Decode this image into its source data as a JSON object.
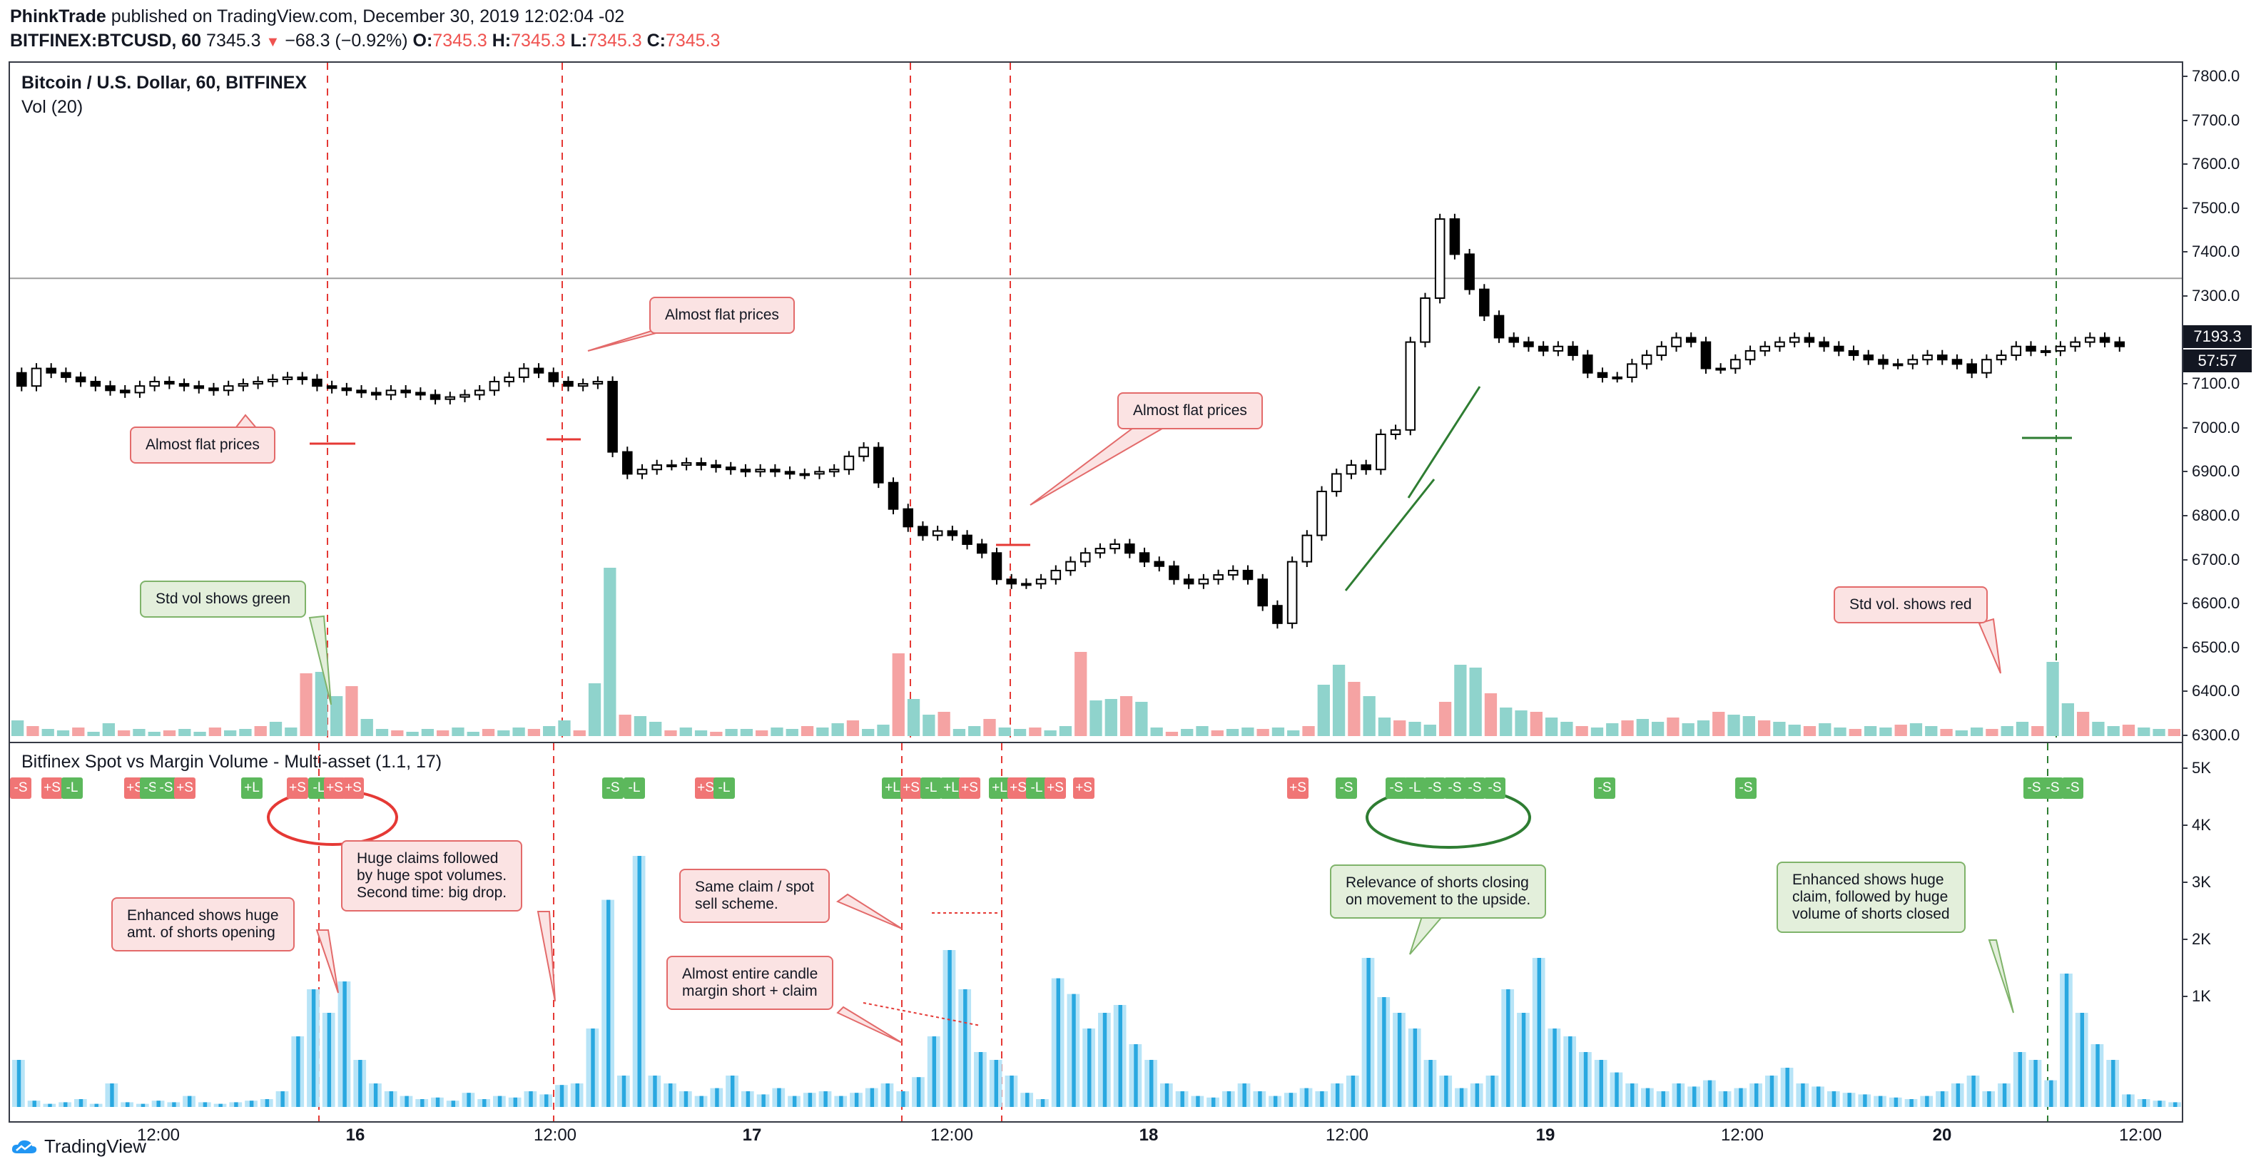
{
  "header": {
    "author": "PhinkTrade",
    "published_text": "published on TradingView.com, December 30, 2019 12:02:04 -02",
    "symbol": "BITFINEX:BTCUSD, 60",
    "last_price": "7345.3",
    "change": "−68.3 (−0.92%)",
    "o_label": "O:",
    "o_value": "7345.3",
    "h_label": "H:",
    "h_value": "7345.3",
    "l_label": "L:",
    "l_value": "7345.3",
    "c_label": "C:",
    "c_value": "7345.3"
  },
  "main_pane": {
    "title": "Bitcoin / U.S. Dollar, 60, BITFINEX",
    "vol_label": "Vol (20)",
    "price_badge": "7193.3",
    "countdown_badge": "57:57",
    "price_ticks": [
      "7800.0",
      "7700.0",
      "7600.0",
      "7500.0",
      "7400.0",
      "7300.0",
      "7200.0",
      "7100.0",
      "7000.0",
      "6900.0",
      "6800.0",
      "6700.0",
      "6600.0",
      "6500.0",
      "6400.0",
      "6300.0"
    ]
  },
  "indicator_pane": {
    "title": "Bitfinex Spot vs Margin Volume - Multi-asset (1.1, 17)",
    "vol_ticks": [
      "5K",
      "4K",
      "3K",
      "2K",
      "1K"
    ]
  },
  "x_axis": {
    "labels": [
      {
        "text": "12:00",
        "bold": false
      },
      {
        "text": "16",
        "bold": true
      },
      {
        "text": "12:00",
        "bold": false
      },
      {
        "text": "17",
        "bold": true
      },
      {
        "text": "12:00",
        "bold": false
      },
      {
        "text": "18",
        "bold": true
      },
      {
        "text": "12:00",
        "bold": false
      },
      {
        "text": "19",
        "bold": true
      },
      {
        "text": "12:00",
        "bold": false
      },
      {
        "text": "20",
        "bold": true
      },
      {
        "text": "12:00",
        "bold": false
      }
    ]
  },
  "callouts": {
    "flat1": "Almost flat prices",
    "flat2": "Almost flat prices",
    "flat3": "Almost flat prices",
    "std_green": "Std vol shows green",
    "std_red": "Std vol. shows red",
    "enhanced_open": "Enhanced shows huge\namt. of shorts opening",
    "huge_claims": "Huge claims followed\nby huge spot volumes.\nSecond time: big drop.",
    "same_claim": "Same claim / spot\nsell scheme.",
    "almost_entire": "Almost entire candle\nmargin short + claim",
    "relevance": "Relevance of shorts closing\non movement to the upside.",
    "enhanced_claim": "Enhanced shows huge\nclaim, followed by huge\nvolume of shorts closed"
  },
  "flags": [
    {
      "t": "-S",
      "c": "r"
    },
    {
      "t": "+S",
      "c": "r"
    },
    {
      "t": "-L",
      "c": "g"
    },
    {
      "t": "+S",
      "c": "r"
    },
    {
      "t": "-S",
      "c": "g"
    },
    {
      "t": "-S",
      "c": "g"
    },
    {
      "t": "+S",
      "c": "r"
    },
    {
      "t": "+L",
      "c": "g"
    },
    {
      "t": "+S",
      "c": "r"
    },
    {
      "t": "-L",
      "c": "g"
    },
    {
      "t": "+S",
      "c": "r"
    },
    {
      "t": "+S",
      "c": "r"
    },
    {
      "t": "-S",
      "c": "g"
    },
    {
      "t": "-L",
      "c": "g"
    },
    {
      "t": "+S",
      "c": "r"
    },
    {
      "t": "-L",
      "c": "g"
    },
    {
      "t": "+L",
      "c": "g"
    },
    {
      "t": "+S",
      "c": "r"
    },
    {
      "t": "-L",
      "c": "g"
    },
    {
      "t": "+L",
      "c": "g"
    },
    {
      "t": "+S",
      "c": "r"
    },
    {
      "t": "+L",
      "c": "g"
    },
    {
      "t": "+S",
      "c": "r"
    },
    {
      "t": "-L",
      "c": "g"
    },
    {
      "t": "+S",
      "c": "r"
    },
    {
      "t": "+S",
      "c": "r"
    },
    {
      "t": "+S",
      "c": "r"
    },
    {
      "t": "-S",
      "c": "g"
    },
    {
      "t": "-S",
      "c": "g"
    },
    {
      "t": "-L",
      "c": "g"
    },
    {
      "t": "-S",
      "c": "g"
    },
    {
      "t": "-S",
      "c": "g"
    },
    {
      "t": "-S",
      "c": "g"
    },
    {
      "t": "-S",
      "c": "g"
    },
    {
      "t": "-S",
      "c": "g"
    },
    {
      "t": "-S",
      "c": "g"
    },
    {
      "t": "-S",
      "c": "g"
    },
    {
      "t": "-S",
      "c": "g"
    },
    {
      "t": "-S",
      "c": "g"
    }
  ],
  "colors": {
    "up_vol": "#8fd3cc",
    "down_vol": "#f5a3a3",
    "dashed_red": "#e53935",
    "dashed_green": "#2e7d32",
    "spot_bar": "#29a8e0",
    "spot_light": "#b7e4f7"
  },
  "footer": {
    "brand": "TradingView"
  }
}
